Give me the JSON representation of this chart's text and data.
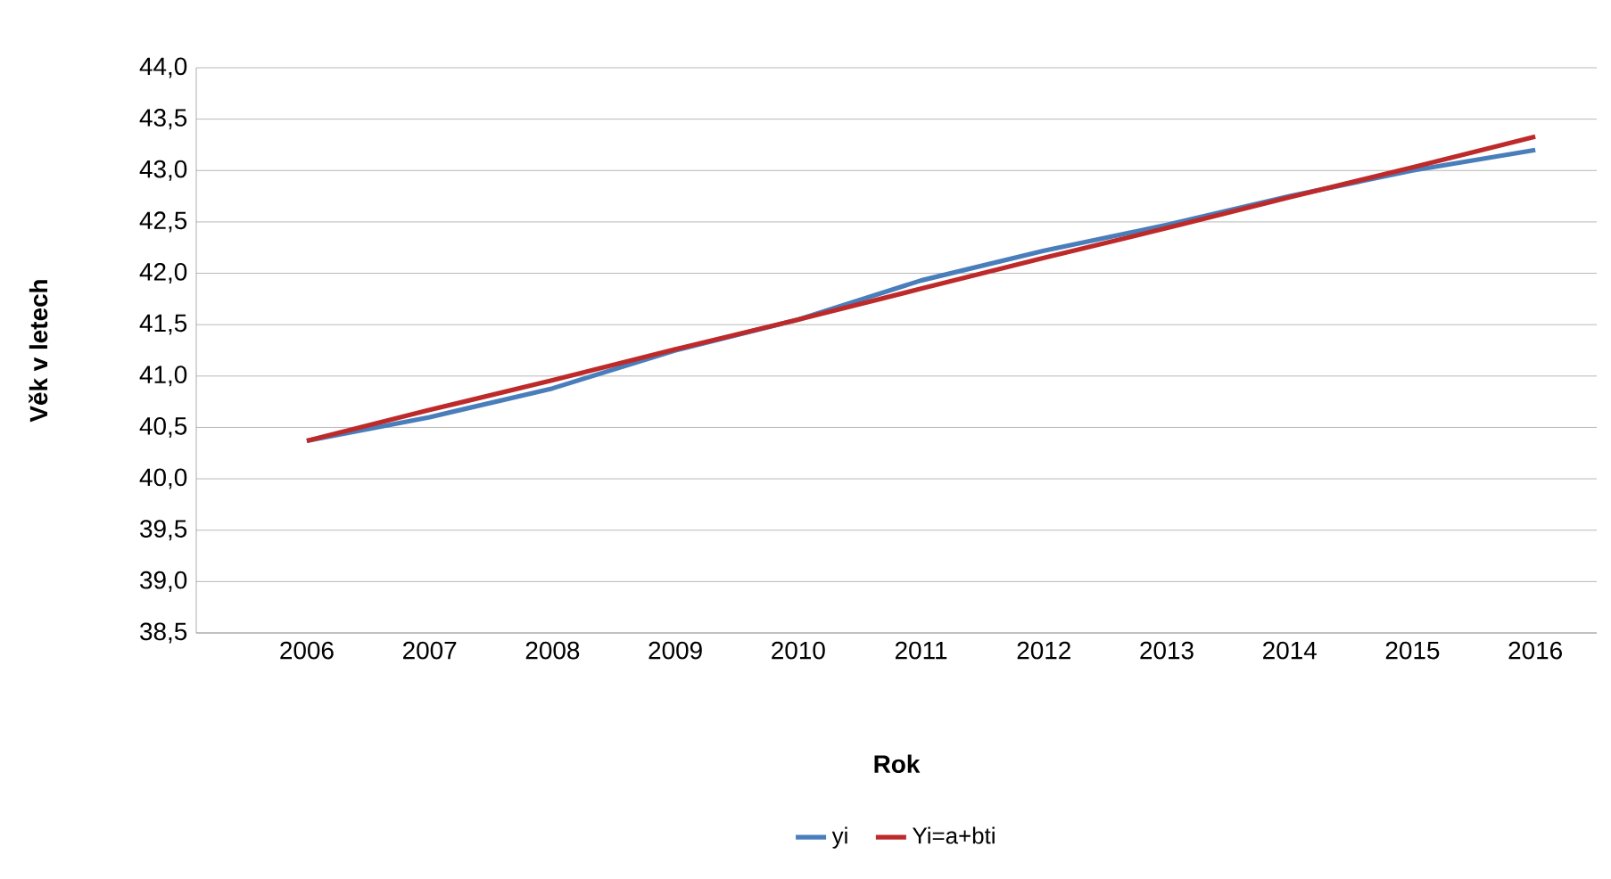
{
  "chart_data": {
    "type": "line",
    "xlabel": "Rok",
    "ylabel": "Věk v letech",
    "categories": [
      "2006",
      "2007",
      "2008",
      "2009",
      "2010",
      "2011",
      "2012",
      "2013",
      "2014",
      "2015",
      "2016"
    ],
    "series": [
      {
        "name": "yi",
        "color": "#4a7ebb",
        "values": [
          40.37,
          40.6,
          40.88,
          41.25,
          41.55,
          41.93,
          42.22,
          42.47,
          42.75,
          43.0,
          43.2
        ]
      },
      {
        "name": "Yi=a+bti",
        "color": "#be2a2a",
        "values": [
          40.37,
          40.67,
          40.96,
          41.26,
          41.55,
          41.85,
          42.15,
          42.44,
          42.74,
          43.03,
          43.33
        ]
      }
    ],
    "ylim": [
      38.5,
      44.0
    ],
    "yticks": [
      {
        "value": 38.5,
        "label": "38,5"
      },
      {
        "value": 39.0,
        "label": "39,0"
      },
      {
        "value": 39.5,
        "label": "39,5"
      },
      {
        "value": 40.0,
        "label": "40,0"
      },
      {
        "value": 40.5,
        "label": "40,5"
      },
      {
        "value": 41.0,
        "label": "41,0"
      },
      {
        "value": 41.5,
        "label": "41,5"
      },
      {
        "value": 42.0,
        "label": "42,0"
      },
      {
        "value": 42.5,
        "label": "42,5"
      },
      {
        "value": 43.0,
        "label": "43,0"
      },
      {
        "value": 43.5,
        "label": "43,5"
      },
      {
        "value": 44.0,
        "label": "44,0"
      }
    ],
    "grid": "y",
    "legend": "bottom"
  }
}
